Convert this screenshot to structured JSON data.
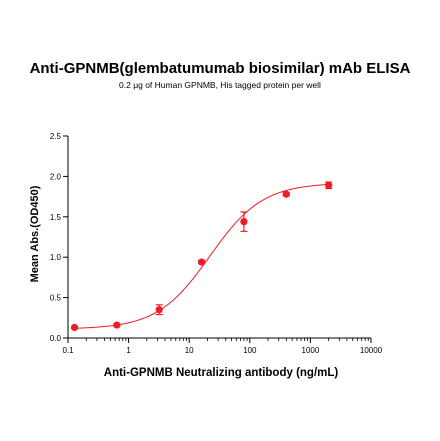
{
  "chart_data": {
    "type": "scatter",
    "title": "Anti-GPNMB(glembatumumab biosimilar) mAb ELISA",
    "subtitle": "0.2 μg of Human GPNMB, His tagged protein per well",
    "xlabel": "Anti-GPNMB Neutralizing antibody  (ng/mL)",
    "ylabel": "Mean Abs.(OD450)",
    "x_scale": "log",
    "xlim": [
      0.1,
      10000
    ],
    "ylim": [
      0.0,
      2.5
    ],
    "x_ticks": [
      "0.1",
      "1",
      "10",
      "100",
      "1000",
      "10000"
    ],
    "y_ticks": [
      "0.0",
      "0.5",
      "1.0",
      "1.5",
      "2.0",
      "2.5"
    ],
    "grid": false,
    "colors": {
      "series": "#ee1c25",
      "axis": "#000000"
    },
    "series": [
      {
        "x": [
          0.128,
          0.64,
          3.2,
          16,
          80,
          400,
          2000
        ],
        "y": [
          0.13,
          0.16,
          0.35,
          0.94,
          1.44,
          1.78,
          1.89
        ],
        "error": [
          0.01,
          0.01,
          0.06,
          0.02,
          0.12,
          0.02,
          0.04
        ]
      }
    ],
    "fit_curve": {
      "model": "4PL",
      "bottom": 0.11,
      "top": 1.92,
      "ec50": 22,
      "hill": 1.0
    }
  }
}
